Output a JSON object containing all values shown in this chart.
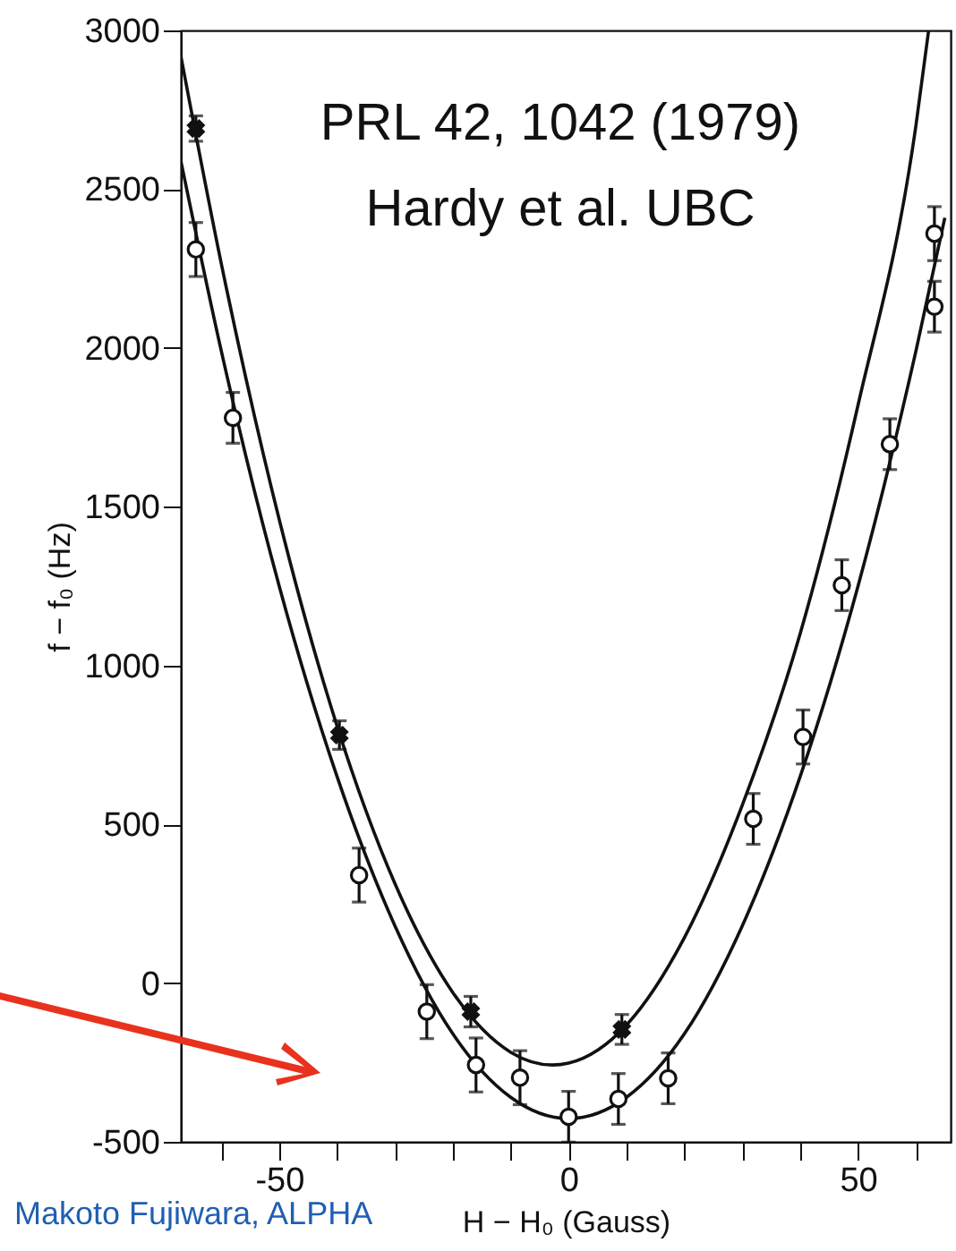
{
  "chart_data": {
    "type": "scatter",
    "xlabel": "H − H₀ (Gauss)",
    "ylabel": "f − f₀ (Hz)",
    "xlim": [
      -67,
      66
    ],
    "ylim": [
      -500,
      3000
    ],
    "xticks": [
      {
        "value": -60,
        "label": null
      },
      -50,
      {
        "value": -40,
        "label": null
      },
      {
        "value": -30,
        "label": null
      },
      {
        "value": -20,
        "label": null
      },
      {
        "value": -10,
        "label": null
      },
      0,
      {
        "value": 10,
        "label": null
      },
      {
        "value": 20,
        "label": null
      },
      {
        "value": 30,
        "label": null
      },
      {
        "value": 40,
        "label": null
      },
      50,
      {
        "value": 60,
        "label": null
      }
    ],
    "yticks": [
      -500,
      0,
      500,
      1000,
      1500,
      2000,
      2500,
      3000
    ],
    "grid": false,
    "series": [
      {
        "type": "line",
        "color": "#111111",
        "x": [
          -67,
          -60,
          -50,
          -40,
          -30,
          -20,
          -10,
          -2.8,
          0,
          10,
          20,
          30,
          40,
          50,
          60,
          62.2
        ],
        "values": [
          2920,
          2265,
          1460,
          809,
          313,
          -30,
          -218,
          -258,
          -252,
          -132,
          143,
          560,
          1100,
          1820,
          2700,
          3000
        ]
      },
      {
        "type": "line",
        "color": "#111111",
        "x": [
          -67,
          -60,
          -50,
          -40,
          -30,
          -20,
          -10,
          0,
          10,
          20,
          30,
          40,
          50,
          60,
          65
        ],
        "values": [
          2590,
          1990,
          1250,
          650,
          180,
          -160,
          -360,
          -427,
          -360,
          -160,
          180,
          650,
          1250,
          1990,
          2410
        ]
      },
      {
        "color": "#111111",
        "marker": "circle",
        "x": [
          -64.4,
          -58,
          -36.2,
          -24.5,
          -16,
          -8.4,
          0,
          8.6,
          17.2,
          31.9,
          40.5,
          47.2,
          55.5,
          63.2,
          63.2
        ],
        "values": [
          2310,
          1780,
          340,
          -90,
          -258,
          -298,
          -421,
          -365,
          -300,
          517,
          775,
          1253,
          1697,
          2360,
          2130
        ],
        "errors": [
          85,
          80,
          85,
          85,
          85,
          85,
          80,
          80,
          80,
          80,
          85,
          80,
          80,
          85,
          80
        ]
      },
      {
        "color": "#111111",
        "marker": "cross",
        "x": [
          -64.4,
          -39.6,
          -16.9,
          9.2
        ],
        "values": [
          2691,
          781,
          -90,
          -146
        ],
        "errors": [
          40,
          45,
          48,
          47
        ]
      }
    ],
    "annotations": [
      "PRL 42, 1042 (1979)",
      "Hardy et al. UBC",
      "Makoto Fujiwara, ALPHA"
    ]
  }
}
